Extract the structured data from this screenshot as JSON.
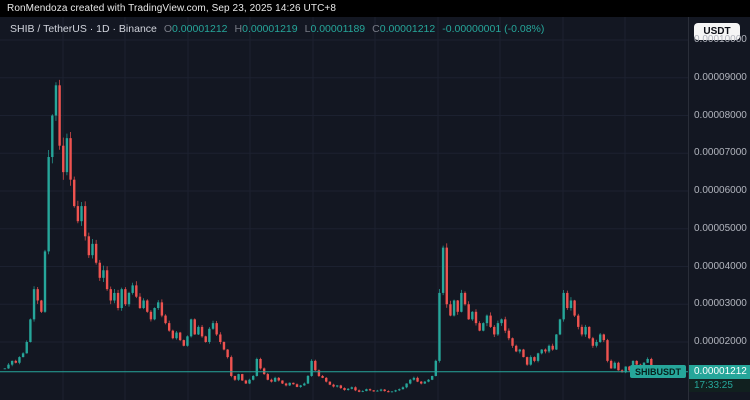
{
  "topbar": {
    "text": "RonMendoza created with TradingView.com, Sep 23, 2025 14:26 UTC+8"
  },
  "legend": {
    "title": "SHIB / TetherUS · 1D · Binance",
    "o_key": "O",
    "o_val": "0.00001212",
    "h_key": "H",
    "h_val": "0.00001219",
    "l_key": "L",
    "l_val": "0.00001189",
    "c_key": "C",
    "c_val": "0.00001212",
    "change": "-0.00000001 (-0.08%)"
  },
  "axis": {
    "currency_button": "USDT",
    "last_price_label": "0.00001212",
    "countdown": "17:33:25",
    "ticker_tag": "SHIBUSDT"
  },
  "chart_data": {
    "type": "candlestick",
    "title": "SHIB / TetherUS · 1D · Binance",
    "symbol": "SHIB / TetherUS",
    "interval": "1D",
    "exchange": "Binance",
    "unit_scale": 1e-08,
    "ylim": [
      600,
      10500
    ],
    "grid": true,
    "y_ticks": [
      {
        "label": "0.00010000",
        "value": 10000
      },
      {
        "label": "0.00009000",
        "value": 9000
      },
      {
        "label": "0.00008000",
        "value": 8000
      },
      {
        "label": "0.00007000",
        "value": 7000
      },
      {
        "label": "0.00006000",
        "value": 6000
      },
      {
        "label": "0.00005000",
        "value": 5000
      },
      {
        "label": "0.00004000",
        "value": 4000
      },
      {
        "label": "0.00003000",
        "value": 3000
      },
      {
        "label": "0.00002000",
        "value": 2000
      }
    ],
    "closes": [
      1300,
      1400,
      1500,
      1450,
      1600,
      1700,
      2000,
      2600,
      3400,
      3100,
      2800,
      4400,
      6900,
      8000,
      8800,
      7200,
      6500,
      7400,
      6300,
      5600,
      5200,
      5600,
      4800,
      4300,
      4600,
      4100,
      3700,
      3900,
      3400,
      3100,
      3300,
      2900,
      3400,
      3000,
      3300,
      3500,
      3200,
      2900,
      3100,
      2800,
      2600,
      2900,
      3050,
      2700,
      2500,
      2300,
      2100,
      2250,
      2050,
      1900,
      2150,
      2600,
      2200,
      2400,
      2150,
      2000,
      2350,
      2500,
      2200,
      2000,
      1800,
      1600,
      1100,
      1000,
      1150,
      980,
      900,
      1000,
      1100,
      1550,
      1300,
      1150,
      1000,
      950,
      1050,
      980,
      900,
      850,
      920,
      880,
      810,
      850,
      900,
      1100,
      1500,
      1250,
      1100,
      1050,
      950,
      870,
      820,
      850,
      780,
      730,
      760,
      800,
      720,
      680,
      700,
      750,
      720,
      690,
      710,
      740,
      700,
      670,
      690,
      720,
      750,
      800,
      900,
      1000,
      1050,
      950,
      900,
      950,
      1000,
      1100,
      1500,
      3300,
      4500,
      3000,
      2700,
      3100,
      2800,
      3300,
      3000,
      2600,
      2800,
      2500,
      2300,
      2500,
      2700,
      2400,
      2200,
      2500,
      2600,
      2300,
      2100,
      1900,
      1750,
      1800,
      1600,
      1400,
      1600,
      1500,
      1700,
      1800,
      1750,
      1900,
      1800,
      2200,
      2600,
      3300,
      2900,
      3100,
      2700,
      2400,
      2200,
      2400,
      2100,
      1900,
      2000,
      2200,
      2050,
      1500,
      1300,
      1450,
      1250,
      1200,
      1350,
      1250,
      1500,
      1400,
      1300,
      1450,
      1550,
      1380,
      1320,
      1250,
      1300,
      1220,
      1180,
      1240,
      1280,
      1215,
      1212
    ],
    "last_price": {
      "label": "0.00001212",
      "value": 1212
    },
    "open": "0.00001212",
    "high": "0.00001219",
    "low": "0.00001189",
    "close": "0.00001212",
    "change": "-0.00000001 (-0.08%)",
    "countdown": "17:33:25",
    "colors": {
      "up": "#26a69a",
      "down": "#ef5350",
      "grid": "#1c2130",
      "background": "#131722",
      "axis_text": "#b2b5be",
      "price_line": "#26a69a"
    }
  }
}
